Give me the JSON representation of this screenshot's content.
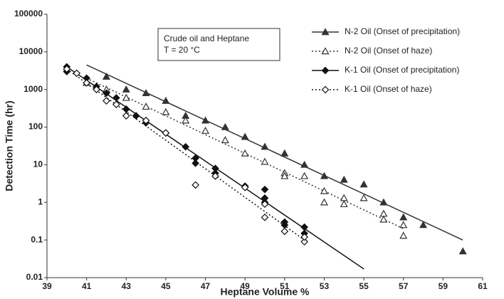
{
  "chart_data": {
    "type": "scatter",
    "x_label": "Heptane Volume %",
    "y_label": "Detection Time (hr)",
    "annotation": [
      "Crude oil and Heptane",
      "T = 20 °C"
    ],
    "xlim": [
      39,
      61
    ],
    "xticks": [
      39,
      41,
      43,
      45,
      47,
      49,
      51,
      53,
      55,
      57,
      59,
      61
    ],
    "ylim": [
      0.01,
      100000
    ],
    "yticks": [
      0.01,
      0.1,
      1,
      10,
      100,
      1000,
      10000,
      100000
    ],
    "log_y": true,
    "grid": false,
    "legend": "upper right",
    "series": [
      {
        "name": "N-2 Oil (Onset of precipitation)",
        "color": "#333333",
        "marker": "triangle",
        "filled": true,
        "line_style": "solid",
        "x": [
          42,
          43,
          44,
          45,
          46,
          47,
          48,
          49,
          50,
          51,
          52,
          53,
          54,
          55,
          56,
          57,
          58,
          60
        ],
        "values": [
          2200,
          1000,
          800,
          500,
          200,
          150,
          100,
          55,
          30,
          20,
          10,
          5,
          4,
          3,
          1,
          0.4,
          0.25,
          0.05
        ],
        "trend": {
          "x": [
            41,
            60
          ],
          "values": [
            4500,
            0.1
          ]
        }
      },
      {
        "name": "N-2 Oil (Onset of haze)",
        "color": "#333333",
        "marker": "triangle",
        "filled": false,
        "line_style": "dotted",
        "x": [
          41,
          42,
          43,
          44,
          45,
          46,
          47,
          48,
          49,
          50,
          51,
          51,
          52,
          53,
          53,
          54,
          54,
          55,
          56,
          56,
          57,
          57
        ],
        "values": [
          1500,
          1000,
          600,
          350,
          250,
          150,
          80,
          45,
          20,
          12,
          6,
          5,
          5,
          2,
          1,
          1.3,
          0.9,
          1.3,
          0.5,
          0.35,
          0.25,
          0.13
        ],
        "trend": {
          "x": [
            41,
            57
          ],
          "values": [
            2000,
            0.2
          ]
        }
      },
      {
        "name": "K-1 Oil (Onset of precipitation)",
        "color": "#111111",
        "marker": "diamond",
        "filled": true,
        "line_style": "solid",
        "x": [
          40,
          40,
          41,
          41.5,
          42,
          42.5,
          43,
          43.5,
          44,
          45,
          46,
          46.5,
          46.5,
          47.5,
          47.5,
          49,
          50,
          50,
          50,
          51,
          51,
          52,
          52
        ],
        "values": [
          4000,
          3000,
          2000,
          1200,
          800,
          600,
          300,
          200,
          130,
          70,
          30,
          11,
          15,
          8,
          6,
          2.7,
          2.2,
          1,
          1.3,
          0.3,
          0.25,
          0.22,
          0.15
        ],
        "trend": {
          "x": [
            40,
            55
          ],
          "values": [
            4000,
            0.017
          ]
        }
      },
      {
        "name": "K-1 Oil (Onset of haze)",
        "color": "#111111",
        "marker": "diamond",
        "filled": false,
        "line_style": "dotted",
        "x": [
          40,
          40.5,
          41,
          41.5,
          42,
          42.5,
          43,
          44,
          45,
          46.5,
          47.5,
          49,
          50,
          50,
          51,
          52,
          52
        ],
        "values": [
          3500,
          2700,
          1500,
          1000,
          500,
          400,
          200,
          150,
          70,
          2.9,
          5,
          2.5,
          0.4,
          0.9,
          0.17,
          0.09,
          0.12
        ],
        "trend": {
          "x": [
            40,
            52
          ],
          "values": [
            3500,
            0.1
          ]
        }
      }
    ]
  }
}
